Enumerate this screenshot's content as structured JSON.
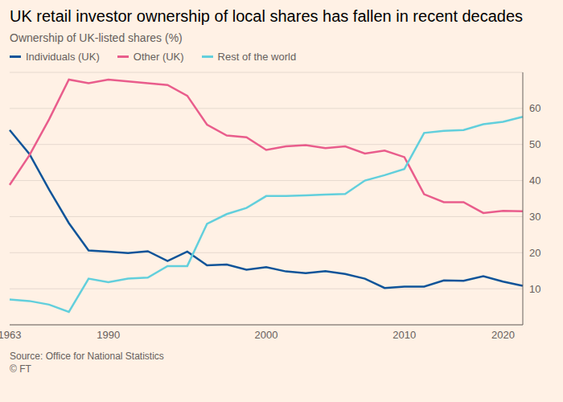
{
  "chart_data": {
    "type": "line",
    "title": "UK retail investor ownership of local shares has fallen in recent decades",
    "subtitle": "Ownership of UK-listed shares (%)",
    "source": "Source: Office for National Statistics",
    "credit": "© FT",
    "categories": [
      "1963",
      null,
      null,
      null,
      null,
      "1990",
      null,
      null,
      null,
      null,
      null,
      null,
      null,
      "2000",
      null,
      null,
      null,
      null,
      null,
      null,
      "2010",
      null,
      null,
      null,
      null,
      "2020",
      null
    ],
    "series": [
      {
        "name": "Individuals (UK)",
        "color": "#0f5499",
        "values": [
          54,
          47.4,
          37.5,
          28.2,
          20.6,
          20.3,
          19.9,
          20.4,
          17.7,
          20.3,
          16.5,
          16.7,
          15.3,
          16.0,
          14.8,
          14.3,
          14.9,
          14.1,
          12.8,
          10.2,
          10.6,
          10.6,
          12.3,
          12.2,
          13.5,
          12.0,
          10.8
        ]
      },
      {
        "name": "Other (UK)",
        "color": "#e95d8c",
        "values": [
          38.8,
          47,
          57,
          68,
          67,
          68,
          67.5,
          67,
          66.5,
          63.5,
          55.5,
          52.5,
          52,
          48.5,
          49.5,
          49.8,
          49,
          49.5,
          47.5,
          48.3,
          46.5,
          36.2,
          34,
          34,
          31,
          31.6,
          31.5
        ]
      },
      {
        "name": "Rest of the world",
        "color": "#62cfdc",
        "values": [
          7,
          6.6,
          5.6,
          3.6,
          12.8,
          11.8,
          12.8,
          13.1,
          16.3,
          16.3,
          28,
          30.7,
          32.4,
          35.7,
          35.7,
          35.9,
          36.1,
          36.3,
          40,
          41.5,
          43.2,
          53.2,
          53.8,
          54,
          55.6,
          56.3,
          57.7
        ]
      }
    ],
    "ylim": [
      0,
      70
    ],
    "yticks": [
      10,
      20,
      30,
      40,
      50,
      60
    ],
    "grid": true
  }
}
